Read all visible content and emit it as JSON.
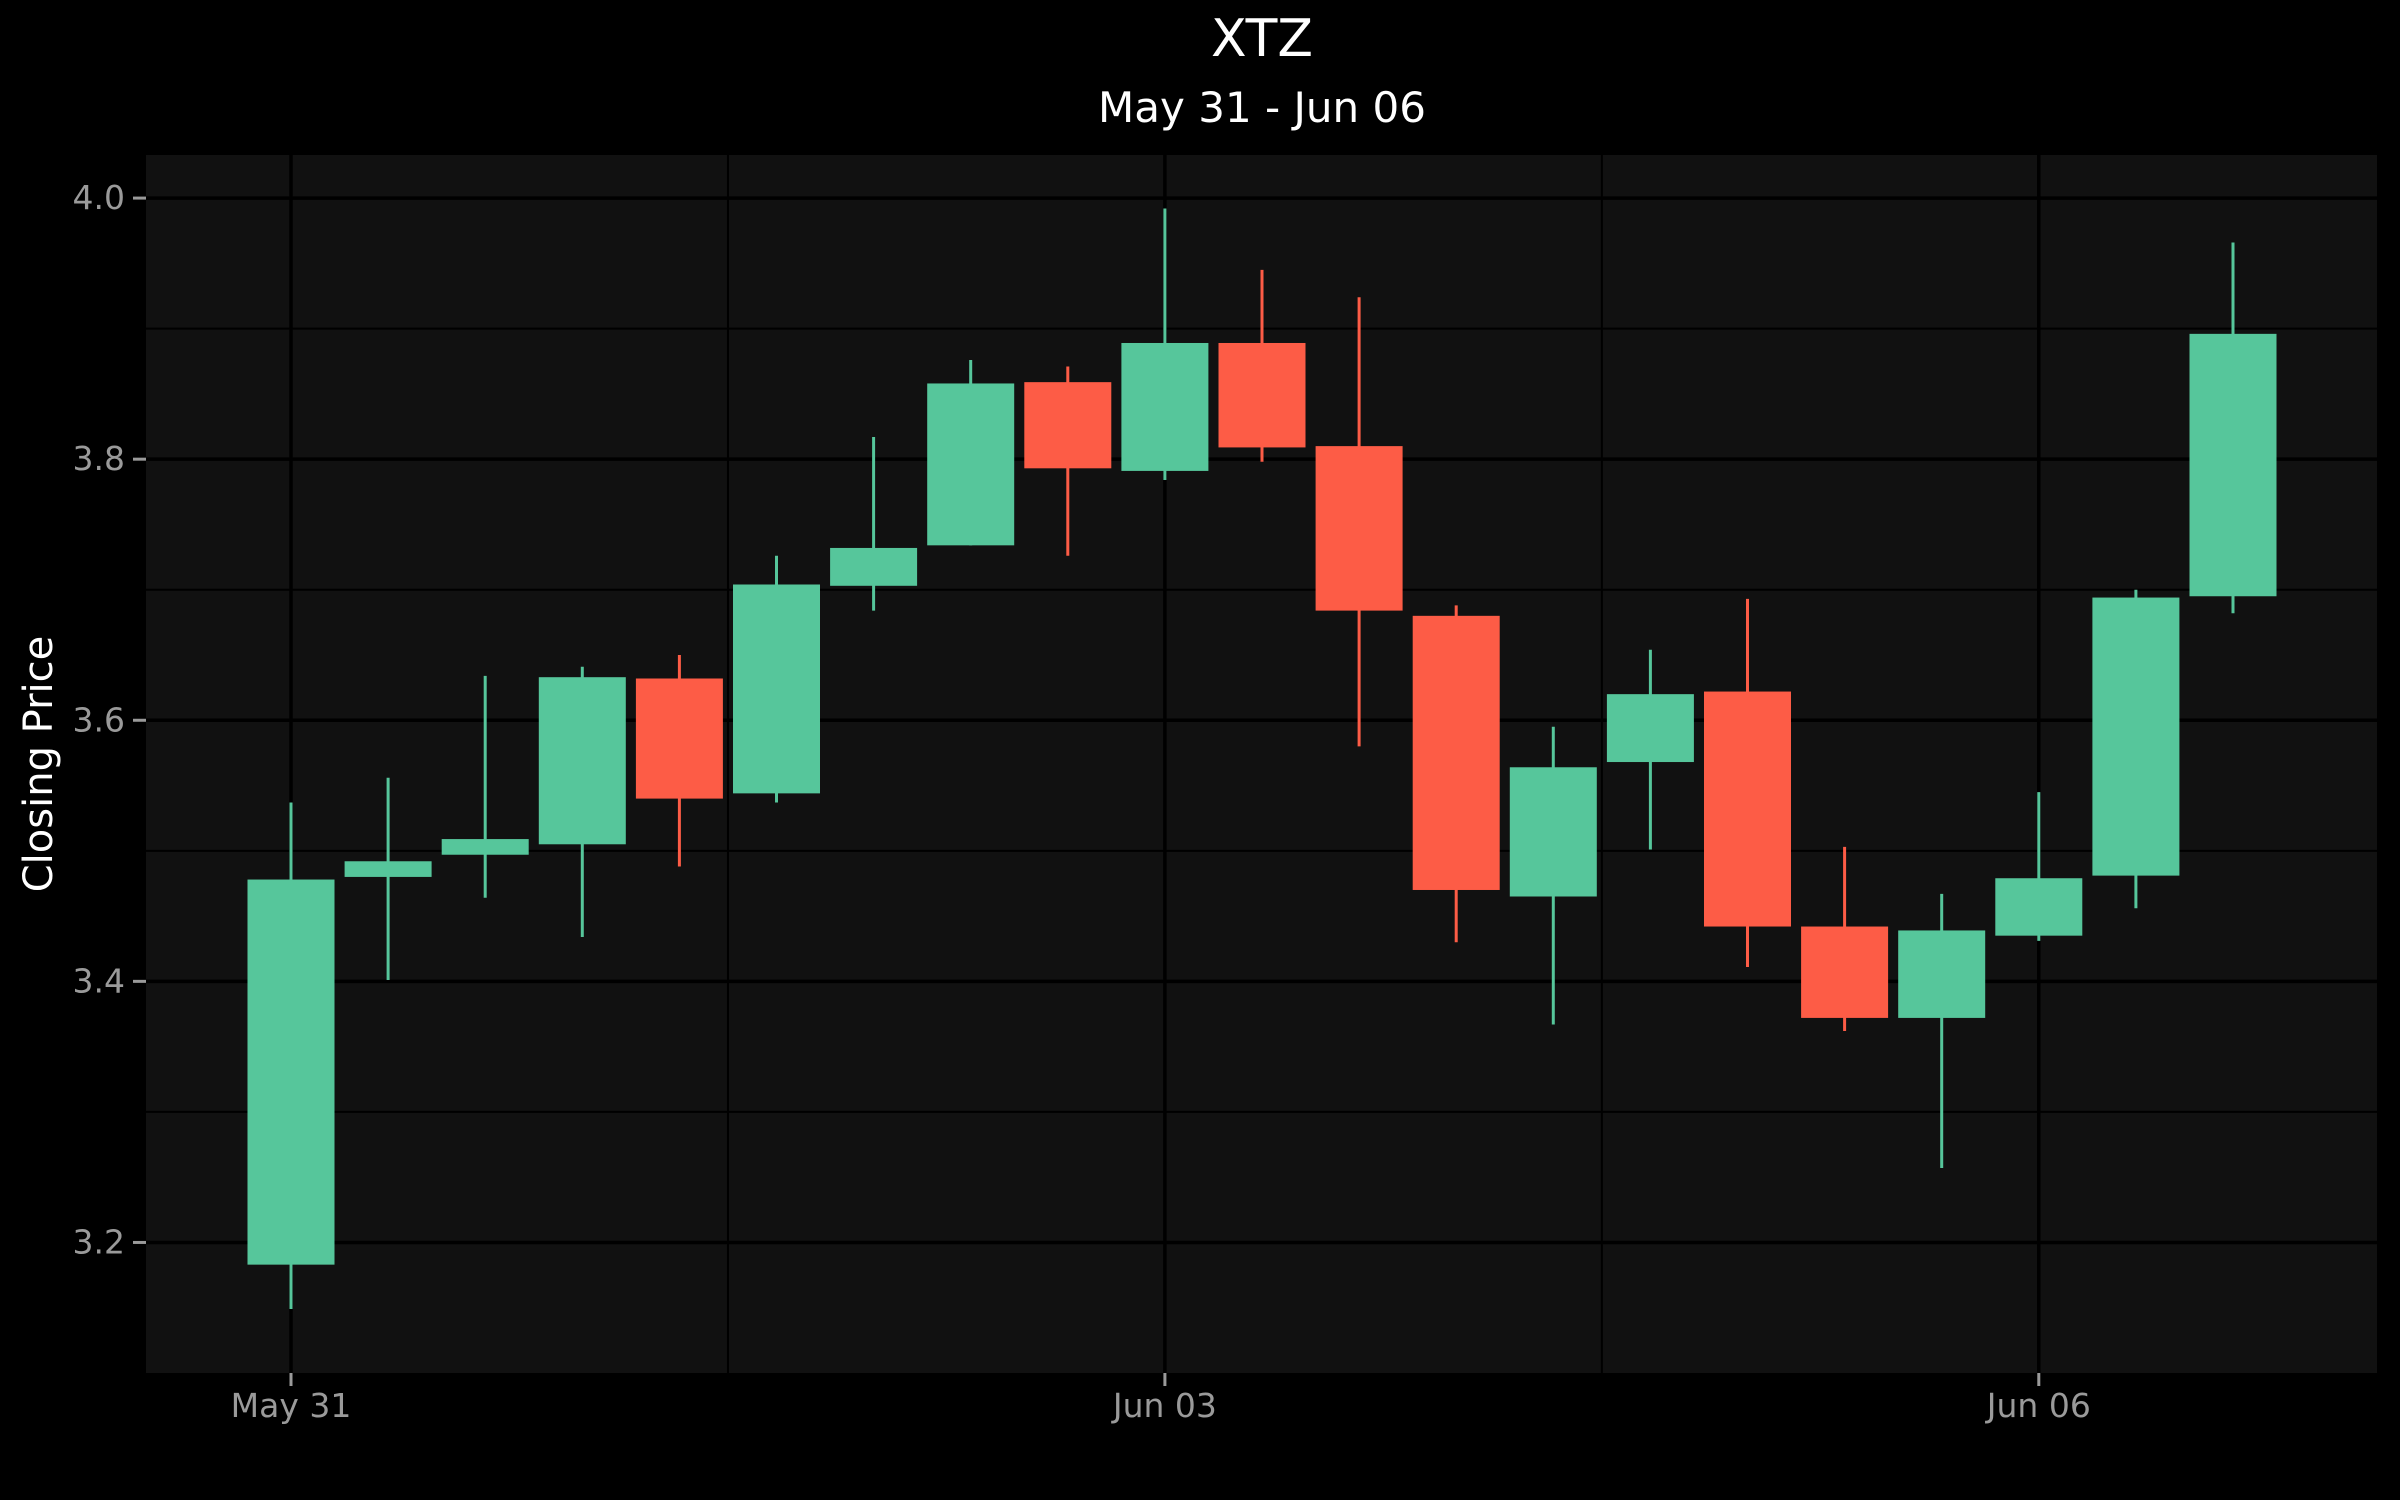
{
  "chart_data": {
    "type": "candlestick",
    "title": "XTZ",
    "subtitle": "May 31 - Jun 06",
    "ylabel": "Closing Price",
    "ylim": [
      3.1,
      4.033
    ],
    "grid": true,
    "x_tick_labels": [
      {
        "label": "May 31",
        "index": 0
      },
      {
        "label": "Jun 03",
        "index": 9
      },
      {
        "label": "Jun 06",
        "index": 18
      }
    ],
    "y_ticks": [
      3.2,
      3.4,
      3.6,
      3.8,
      4.0
    ],
    "y_tick_labels": [
      "3.2",
      "3.4",
      "3.6",
      "3.8",
      "4.0"
    ],
    "colors": {
      "increasing": "#56c69b",
      "decreasing": "#fd5c46",
      "panel": "#111111",
      "grid": "#000000"
    },
    "candles": [
      {
        "open": 3.183,
        "high": 3.537,
        "low": 3.149,
        "close": 3.478
      },
      {
        "open": 3.48,
        "high": 3.556,
        "low": 3.401,
        "close": 3.492
      },
      {
        "open": 3.497,
        "high": 3.634,
        "low": 3.464,
        "close": 3.509
      },
      {
        "open": 3.505,
        "high": 3.641,
        "low": 3.434,
        "close": 3.633
      },
      {
        "open": 3.632,
        "high": 3.65,
        "low": 3.488,
        "close": 3.54
      },
      {
        "open": 3.544,
        "high": 3.726,
        "low": 3.537,
        "close": 3.704
      },
      {
        "open": 3.703,
        "high": 3.817,
        "low": 3.684,
        "close": 3.732
      },
      {
        "open": 3.734,
        "high": 3.876,
        "low": 3.734,
        "close": 3.858
      },
      {
        "open": 3.859,
        "high": 3.871,
        "low": 3.726,
        "close": 3.793
      },
      {
        "open": 3.791,
        "high": 3.992,
        "low": 3.784,
        "close": 3.889
      },
      {
        "open": 3.889,
        "high": 3.945,
        "low": 3.798,
        "close": 3.809
      },
      {
        "open": 3.81,
        "high": 3.924,
        "low": 3.58,
        "close": 3.684
      },
      {
        "open": 3.68,
        "high": 3.688,
        "low": 3.43,
        "close": 3.47
      },
      {
        "open": 3.465,
        "high": 3.595,
        "low": 3.367,
        "close": 3.564
      },
      {
        "open": 3.568,
        "high": 3.654,
        "low": 3.501,
        "close": 3.62
      },
      {
        "open": 3.622,
        "high": 3.693,
        "low": 3.411,
        "close": 3.442
      },
      {
        "open": 3.442,
        "high": 3.503,
        "low": 3.362,
        "close": 3.372
      },
      {
        "open": 3.372,
        "high": 3.467,
        "low": 3.257,
        "close": 3.439
      },
      {
        "open": 3.435,
        "high": 3.545,
        "low": 3.431,
        "close": 3.479
      },
      {
        "open": 3.481,
        "high": 3.7,
        "low": 3.456,
        "close": 3.694
      },
      {
        "open": 3.695,
        "high": 3.966,
        "low": 3.682,
        "close": 3.896
      }
    ]
  }
}
